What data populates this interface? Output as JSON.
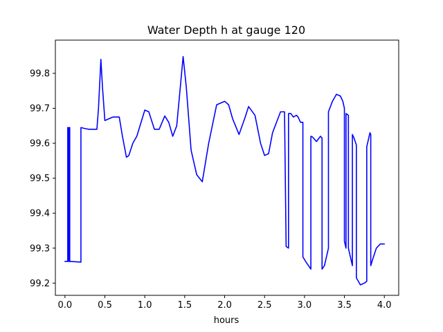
{
  "chart_data": {
    "type": "line",
    "title": "Water Depth h at gauge 120",
    "xlabel": "hours",
    "ylabel": "",
    "xlim": [
      -0.12,
      4.18
    ],
    "ylim": [
      99.165,
      99.895
    ],
    "grid": false,
    "line_color": "#0000ff",
    "x_ticks": [
      0.0,
      0.5,
      1.0,
      1.5,
      2.0,
      2.5,
      3.0,
      3.5,
      4.0
    ],
    "x_tick_labels": [
      "0.0",
      "0.5",
      "1.0",
      "1.5",
      "2.0",
      "2.5",
      "3.0",
      "3.5",
      "4.0"
    ],
    "y_ticks": [
      99.2,
      99.3,
      99.4,
      99.5,
      99.6,
      99.7,
      99.8
    ],
    "y_tick_labels": [
      "99.2",
      "99.3",
      "99.4",
      "99.5",
      "99.6",
      "99.7",
      "99.8"
    ],
    "series": [
      {
        "x": [
          0.0,
          0.035,
          0.035,
          0.04,
          0.04,
          0.05,
          0.05,
          0.06,
          0.06,
          0.2,
          0.2,
          0.25,
          0.3,
          0.4,
          0.42,
          0.45,
          0.47,
          0.5,
          0.55,
          0.6,
          0.68,
          0.72,
          0.77,
          0.8,
          0.85,
          0.9,
          1.0,
          1.05,
          1.12,
          1.18,
          1.25,
          1.3,
          1.35,
          1.4,
          1.48,
          1.52,
          1.58,
          1.65,
          1.72,
          1.8,
          1.9,
          2.0,
          2.05,
          2.1,
          2.18,
          2.25,
          2.3,
          2.38,
          2.45,
          2.5,
          2.55,
          2.6,
          2.7,
          2.75,
          2.77,
          2.77,
          2.8,
          2.8,
          2.83,
          2.86,
          2.9,
          2.92,
          2.95,
          2.98,
          2.98,
          3.02,
          3.08,
          3.08,
          3.1,
          3.15,
          3.2,
          3.22,
          3.22,
          3.25,
          3.3,
          3.3,
          3.35,
          3.4,
          3.45,
          3.48,
          3.5,
          3.5,
          3.52,
          3.52,
          3.55,
          3.55,
          3.6,
          3.6,
          3.62,
          3.65,
          3.65,
          3.7,
          3.75,
          3.78,
          3.78,
          3.8,
          3.82,
          3.83,
          3.83,
          3.85,
          3.9,
          3.95,
          4.0
        ],
        "y": [
          99.262,
          99.262,
          99.645,
          99.645,
          99.262,
          99.262,
          99.645,
          99.645,
          99.262,
          99.26,
          99.645,
          99.642,
          99.64,
          99.64,
          99.7,
          99.84,
          99.76,
          99.665,
          99.67,
          99.675,
          99.675,
          99.62,
          99.56,
          99.565,
          99.6,
          99.62,
          99.695,
          99.69,
          99.64,
          99.64,
          99.678,
          99.66,
          99.62,
          99.65,
          99.848,
          99.76,
          99.58,
          99.51,
          99.49,
          99.6,
          99.71,
          99.72,
          99.71,
          99.67,
          99.625,
          99.67,
          99.705,
          99.68,
          99.6,
          99.565,
          99.57,
          99.63,
          99.69,
          99.69,
          99.305,
          99.305,
          99.3,
          99.685,
          99.685,
          99.675,
          99.68,
          99.675,
          99.66,
          99.66,
          99.275,
          99.26,
          99.24,
          99.62,
          99.618,
          99.605,
          99.62,
          99.615,
          99.24,
          99.25,
          99.3,
          99.69,
          99.72,
          99.74,
          99.735,
          99.72,
          99.7,
          99.32,
          99.3,
          99.685,
          99.68,
          99.3,
          99.25,
          99.625,
          99.615,
          99.595,
          99.215,
          99.195,
          99.2,
          99.205,
          99.59,
          99.61,
          99.63,
          99.625,
          99.25,
          99.265,
          99.3,
          99.312,
          99.312
        ]
      }
    ]
  }
}
